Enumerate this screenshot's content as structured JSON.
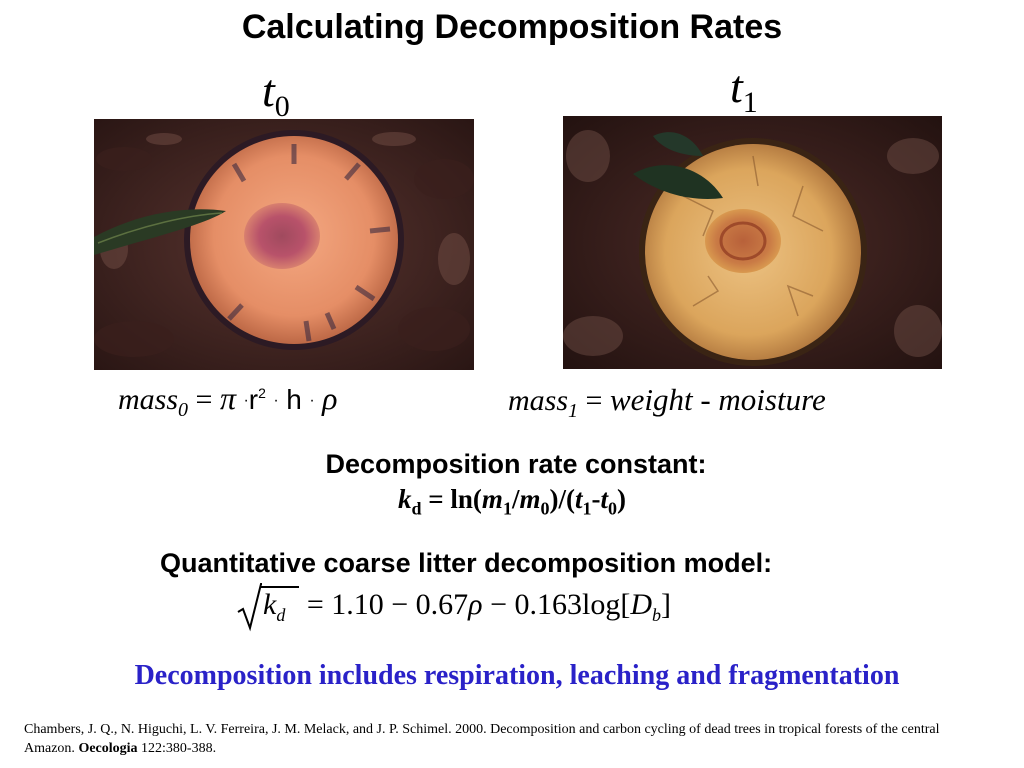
{
  "slide": {
    "title": "Calculating Decomposition Rates",
    "t0": {
      "symbol": "t",
      "subscript": "0"
    },
    "t1": {
      "symbol": "t",
      "subscript": "1"
    },
    "mass0": {
      "lhs": "mass",
      "lhs_sub": "0",
      "equals": "=",
      "pi": "π",
      "dot": "·",
      "r": "r",
      "r_sup": "2",
      "h": "h",
      "rho": "ρ"
    },
    "mass1": {
      "lhs": "mass",
      "lhs_sub": "1",
      "equals": "=",
      "rhs": "weight - moisture"
    },
    "rate_heading": "Decomposition rate constant:",
    "rate_formula": {
      "k": "k",
      "k_sub": "d",
      "eq_ln": " = ln(",
      "m1": "m",
      "m1_sub": "1",
      "slash": "/",
      "m0": "m",
      "m0_sub": "0",
      "mid": ")/(",
      "t1": "t",
      "t1_sub": "1",
      "minus": "-",
      "t0": "t",
      "t0_sub": "0",
      "close": ")"
    },
    "model_heading": "Quantitative coarse litter decomposition model:",
    "model_eq": {
      "k": "k",
      "k_sub": "d",
      "rhs": "= 1.10 − 0.67",
      "rho": "ρ",
      "rhs2": " − 0.163log[",
      "D": "D",
      "D_sub": "b",
      "close": "]"
    },
    "summary": "Decomposition includes respiration, leaching and fragmentation",
    "citation": {
      "text": "Chambers, J. Q., N. Higuchi, L. V. Ferreira, J. M. Melack, and J. P. Schimel. 2000. Decomposition and carbon cycling of dead trees in tropical forests of the central Amazon. ",
      "journal": "Oecologia",
      "volume": " 122:380-388."
    }
  },
  "colors": {
    "summary_text": "#2a22c8",
    "wood_fresh": "#e9906a",
    "wood_decayed": "#d9a45a",
    "forest_floor": "#4a2a25"
  },
  "images": [
    {
      "name": "fresh-log-cross-section-photo",
      "label": "t0"
    },
    {
      "name": "decayed-log-cross-section-photo",
      "label": "t1"
    }
  ]
}
